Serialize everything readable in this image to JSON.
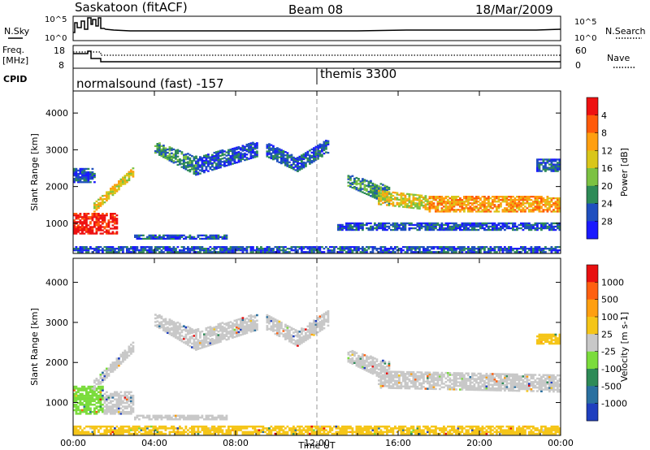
{
  "header": {
    "station": "Saskatoon (fitACF)",
    "beam": "Beam 08",
    "date": "18/Mar/2009"
  },
  "top_panel": {
    "left_label": "N.Sky",
    "right_label": "N.Search",
    "left_ticks": [
      "10^5",
      "10^0"
    ],
    "right_ticks": [
      "10^5",
      "10^0"
    ]
  },
  "freq_panel": {
    "left_label_line1": "Freq.",
    "left_label_line2": "[MHz]",
    "right_label": "Nave",
    "left_ticks": [
      "18",
      "8"
    ],
    "right_ticks": [
      "60",
      "0"
    ]
  },
  "cpid_panel": {
    "label": "CPID",
    "programs": [
      {
        "name": "normalsound (fast) -157",
        "start_hour": 0
      },
      {
        "name": "themis 3300",
        "start_hour": 12
      }
    ]
  },
  "chart_data": [
    {
      "type": "heatmap",
      "name": "power",
      "xlabel": "Time UT",
      "ylabel": "Slant Range [km]",
      "xlim": [
        0,
        24
      ],
      "ylim": [
        180,
        4600
      ],
      "x_ticks": [
        "00:00",
        "04:00",
        "08:00",
        "12:00",
        "16:00",
        "20:00",
        "00:00"
      ],
      "y_ticks": [
        "1000",
        "2000",
        "3000",
        "4000"
      ],
      "y_tick_values": [
        1000,
        2000,
        3000,
        4000
      ],
      "colorbar": {
        "label": "Power [dB]",
        "ticks": [
          "4",
          "8",
          "12",
          "16",
          "20",
          "24",
          "28"
        ],
        "colors": [
          "#1a1aff",
          "#1f4fbf",
          "#2e8b57",
          "#7cc242",
          "#d9c61a",
          "#ff9f10",
          "#ff5a0a",
          "#ee1111"
        ]
      },
      "regions": [
        {
          "t": [
            0.0,
            2.2
          ],
          "r_lo": [
            700,
            700
          ],
          "r_hi": [
            1250,
            1250
          ],
          "level": 7
        },
        {
          "t": [
            1.0,
            3.0
          ],
          "r_lo": [
            1300,
            2300
          ],
          "r_hi": [
            1550,
            2550
          ],
          "level": 4
        },
        {
          "t": [
            0.0,
            1.0
          ],
          "r_lo": [
            2100,
            2100
          ],
          "r_hi": [
            2500,
            2500
          ],
          "level": 1
        },
        {
          "t": [
            0.0,
            24.0
          ],
          "r_lo": [
            200,
            200
          ],
          "r_hi": [
            350,
            350
          ],
          "level": 1
        },
        {
          "t": [
            3.0,
            7.5
          ],
          "r_lo": [
            560,
            560
          ],
          "r_hi": [
            680,
            680
          ],
          "level": 1
        },
        {
          "t": [
            4.0,
            6.0
          ],
          "r_lo": [
            2900,
            2300
          ],
          "r_hi": [
            3200,
            2800
          ],
          "level": 2
        },
        {
          "t": [
            6.0,
            9.0
          ],
          "r_lo": [
            2300,
            2800
          ],
          "r_hi": [
            2800,
            3200
          ],
          "level": 1
        },
        {
          "t": [
            9.5,
            11.0
          ],
          "r_lo": [
            2800,
            2400
          ],
          "r_hi": [
            3200,
            2800
          ],
          "level": 1
        },
        {
          "t": [
            11.0,
            12.5
          ],
          "r_lo": [
            2400,
            2900
          ],
          "r_hi": [
            2800,
            3300
          ],
          "level": 1
        },
        {
          "t": [
            13.5,
            15.5
          ],
          "r_lo": [
            2000,
            1500
          ],
          "r_hi": [
            2300,
            2000
          ],
          "level": 2
        },
        {
          "t": [
            15.0,
            17.5
          ],
          "r_lo": [
            1500,
            1350
          ],
          "r_hi": [
            1900,
            1750
          ],
          "level": 4
        },
        {
          "t": [
            17.5,
            24.0
          ],
          "r_lo": [
            1300,
            1300
          ],
          "r_hi": [
            1750,
            1700
          ],
          "level": 5
        },
        {
          "t": [
            22.8,
            24.0
          ],
          "r_lo": [
            2400,
            2400
          ],
          "r_hi": [
            2750,
            2750
          ],
          "level": 1
        },
        {
          "t": [
            13.0,
            24.0
          ],
          "r_lo": [
            800,
            800
          ],
          "r_hi": [
            1000,
            1000
          ],
          "level": 1
        }
      ]
    },
    {
      "type": "heatmap",
      "name": "velocity",
      "xlabel": "Time UT",
      "ylabel": "Slant Range [km]",
      "xlim": [
        0,
        24
      ],
      "ylim": [
        180,
        4600
      ],
      "x_ticks": [
        "00:00",
        "04:00",
        "08:00",
        "12:00",
        "16:00",
        "20:00",
        "00:00"
      ],
      "y_ticks": [
        "1000",
        "2000",
        "3000",
        "4000"
      ],
      "y_tick_values": [
        1000,
        2000,
        3000,
        4000
      ],
      "colorbar": {
        "label": "Velocity [m s-1]",
        "ticks": [
          "1000",
          "500",
          "100",
          "25",
          "-25",
          "-100",
          "-500",
          "-1000"
        ],
        "colors": [
          "#1f3fbf",
          "#2a70a0",
          "#2e8b57",
          "#7bdc3c",
          "#c8c8c8",
          "#f5c518",
          "#ff9f10",
          "#ff6010",
          "#e81010"
        ]
      },
      "regions": [
        {
          "t": [
            0.0,
            1.5
          ],
          "r_lo": [
            700,
            700
          ],
          "r_hi": [
            1400,
            1400
          ],
          "color": "#7bdc3c"
        },
        {
          "t": [
            1.5,
            3.0
          ],
          "r_lo": [
            700,
            700
          ],
          "r_hi": [
            1250,
            1250
          ],
          "color": "#c8c8c8"
        },
        {
          "t": [
            1.0,
            3.0
          ],
          "r_lo": [
            1300,
            2300
          ],
          "r_hi": [
            1550,
            2550
          ],
          "color": "#c8c8c8"
        },
        {
          "t": [
            4.0,
            6.0
          ],
          "r_lo": [
            2900,
            2300
          ],
          "r_hi": [
            3200,
            2800
          ],
          "color": "#c8c8c8"
        },
        {
          "t": [
            6.0,
            9.0
          ],
          "r_lo": [
            2300,
            2800
          ],
          "r_hi": [
            2800,
            3200
          ],
          "color": "#c8c8c8"
        },
        {
          "t": [
            9.5,
            11.0
          ],
          "r_lo": [
            2800,
            2400
          ],
          "r_hi": [
            3200,
            2800
          ],
          "color": "#c8c8c8"
        },
        {
          "t": [
            11.0,
            12.5
          ],
          "r_lo": [
            2400,
            2900
          ],
          "r_hi": [
            2800,
            3300
          ],
          "color": "#c8c8c8"
        },
        {
          "t": [
            13.5,
            15.5
          ],
          "r_lo": [
            2000,
            1500
          ],
          "r_hi": [
            2300,
            2000
          ],
          "color": "#c8c8c8"
        },
        {
          "t": [
            15.0,
            24.0
          ],
          "r_lo": [
            1350,
            1250
          ],
          "r_hi": [
            1800,
            1700
          ],
          "color": "#c8c8c8"
        },
        {
          "t": [
            3.0,
            7.5
          ],
          "r_lo": [
            560,
            560
          ],
          "r_hi": [
            680,
            680
          ],
          "color": "#c8c8c8"
        },
        {
          "t": [
            0.0,
            24.0
          ],
          "r_lo": [
            200,
            200
          ],
          "r_hi": [
            400,
            400
          ],
          "color": "#f5c518"
        },
        {
          "t": [
            22.8,
            24.0
          ],
          "r_lo": [
            2450,
            2450
          ],
          "r_hi": [
            2700,
            2700
          ],
          "color": "#f5c518"
        }
      ]
    }
  ]
}
